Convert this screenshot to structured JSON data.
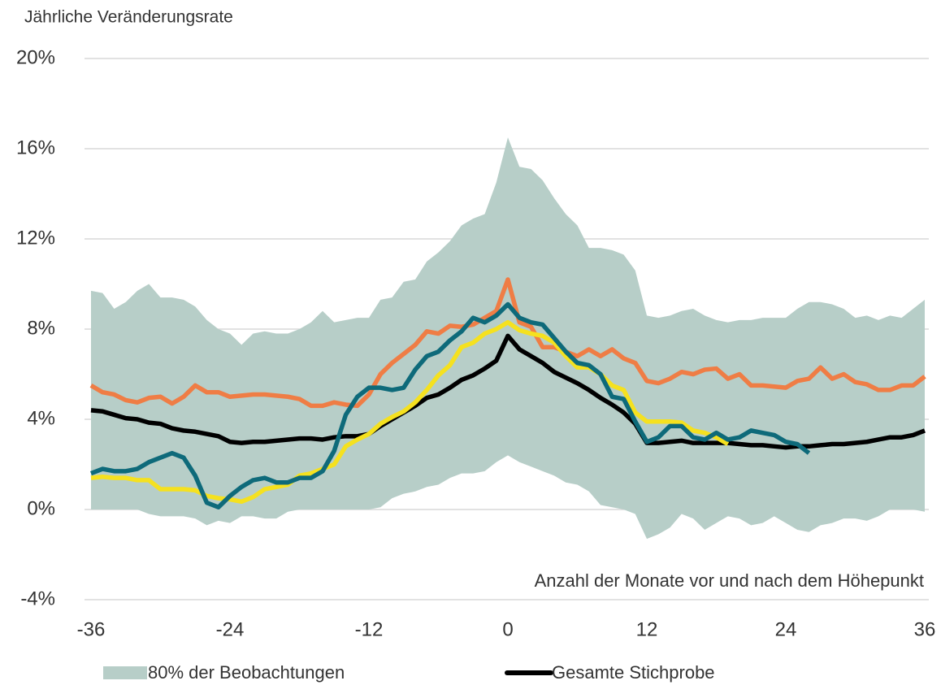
{
  "chart_data": {
    "type": "line",
    "y_axis_title": "Jährliche Veränderungsrate",
    "annotation": "Anzahl der Monate vor und nach dem Höhepunkt",
    "x": [
      -36,
      -35,
      -34,
      -33,
      -32,
      -31,
      -30,
      -29,
      -28,
      -27,
      -26,
      -25,
      -24,
      -23,
      -22,
      -21,
      -20,
      -19,
      -18,
      -17,
      -16,
      -15,
      -14,
      -13,
      -12,
      -11,
      -10,
      -9,
      -8,
      -7,
      -6,
      -5,
      -4,
      -3,
      -2,
      -1,
      0,
      1,
      2,
      3,
      4,
      5,
      6,
      7,
      8,
      9,
      10,
      11,
      12,
      13,
      14,
      15,
      16,
      17,
      18,
      19,
      20,
      21,
      22,
      23,
      24,
      25,
      26,
      27,
      28,
      29,
      30,
      31,
      32,
      33,
      34,
      35,
      36
    ],
    "xlim": [
      -36,
      36
    ],
    "xticks": [
      -36,
      -24,
      -12,
      0,
      12,
      24,
      36
    ],
    "ylim": [
      -4,
      20
    ],
    "yticks": [
      {
        "value": -4,
        "label": "-4%"
      },
      {
        "value": 0,
        "label": "0%"
      },
      {
        "value": 4,
        "label": "4%"
      },
      {
        "value": 8,
        "label": "8%"
      },
      {
        "value": 12,
        "label": "12%"
      },
      {
        "value": 16,
        "label": "16%"
      },
      {
        "value": 20,
        "label": "20%"
      }
    ],
    "grid": true,
    "legend": "bottom",
    "series": [
      {
        "name": "80% der Beobachtungen",
        "color": "#b7cec8",
        "kind": "band",
        "values": [
          9.7,
          9.6,
          8.9,
          9.2,
          9.7,
          10.0,
          9.4,
          9.4,
          9.3,
          9.0,
          8.4,
          8.0,
          7.8,
          7.3,
          7.8,
          7.9,
          7.8,
          7.8,
          8.0,
          8.3,
          8.8,
          8.3,
          8.4,
          8.5,
          8.5,
          9.3,
          9.4,
          10.1,
          10.2,
          11.0,
          11.4,
          11.9,
          12.6,
          12.9,
          13.1,
          14.5,
          16.5,
          15.2,
          15.1,
          14.6,
          13.8,
          13.1,
          12.6,
          11.6,
          11.6,
          11.5,
          11.3,
          10.6,
          8.6,
          8.5,
          8.6,
          8.8,
          8.9,
          8.6,
          8.4,
          8.3,
          8.4,
          8.4,
          8.5,
          8.5,
          8.5,
          8.9,
          9.2,
          9.2,
          9.1,
          8.9,
          8.5,
          8.6,
          8.4,
          8.6,
          8.5,
          8.9,
          9.3
        ],
        "lower": [
          0.0,
          0.0,
          0.0,
          0.0,
          0.0,
          -0.2,
          -0.3,
          -0.3,
          -0.3,
          -0.4,
          -0.7,
          -0.5,
          -0.6,
          -0.3,
          -0.3,
          -0.4,
          -0.4,
          -0.1,
          0.0,
          0.0,
          0.0,
          0.0,
          0.0,
          0.0,
          0.0,
          0.1,
          0.5,
          0.7,
          0.8,
          1.0,
          1.1,
          1.4,
          1.6,
          1.6,
          1.7,
          2.1,
          2.4,
          2.1,
          1.9,
          1.7,
          1.5,
          1.2,
          1.1,
          0.8,
          0.2,
          0.1,
          0.0,
          -0.2,
          -1.3,
          -1.1,
          -0.8,
          -0.2,
          -0.4,
          -0.9,
          -0.6,
          -0.3,
          -0.4,
          -0.7,
          -0.6,
          -0.3,
          -0.6,
          -0.9,
          -1.0,
          -0.7,
          -0.6,
          -0.4,
          -0.4,
          -0.5,
          -0.3,
          0.0,
          0.0,
          0.0,
          -0.1
        ]
      },
      {
        "name": "Gesamte Stichprobe",
        "color": "#000000",
        "values": [
          4.4,
          4.35,
          4.2,
          4.05,
          4.0,
          3.85,
          3.8,
          3.6,
          3.5,
          3.45,
          3.35,
          3.25,
          3.0,
          2.95,
          3.0,
          3.0,
          3.05,
          3.1,
          3.15,
          3.15,
          3.1,
          3.2,
          3.25,
          3.25,
          3.35,
          3.7,
          4.0,
          4.3,
          4.6,
          4.95,
          5.1,
          5.4,
          5.75,
          5.95,
          6.25,
          6.6,
          7.7,
          7.1,
          6.8,
          6.5,
          6.1,
          5.85,
          5.6,
          5.3,
          4.95,
          4.65,
          4.3,
          3.8,
          2.95,
          2.95,
          3.0,
          3.05,
          2.95,
          2.95,
          2.95,
          2.95,
          2.9,
          2.85,
          2.85,
          2.8,
          2.75,
          2.8,
          2.8,
          2.85,
          2.9,
          2.9,
          2.95,
          3.0,
          3.1,
          3.2,
          3.2,
          3.3,
          3.5
        ]
      },
      {
        "color": "#ef7d45",
        "values": [
          5.5,
          5.2,
          5.1,
          4.85,
          4.75,
          4.95,
          5.0,
          4.7,
          5.0,
          5.5,
          5.2,
          5.2,
          5.0,
          5.05,
          5.1,
          5.1,
          5.05,
          5.0,
          4.9,
          4.6,
          4.6,
          4.75,
          4.65,
          4.6,
          5.1,
          6.0,
          6.5,
          6.9,
          7.3,
          7.9,
          7.8,
          8.15,
          8.1,
          8.2,
          8.5,
          8.8,
          10.2,
          8.3,
          8.1,
          7.2,
          7.2,
          7.0,
          6.8,
          7.1,
          6.8,
          7.1,
          6.7,
          6.5,
          5.7,
          5.6,
          5.8,
          6.1,
          6.0,
          6.2,
          6.25,
          5.8,
          6.0,
          5.5,
          5.5,
          5.45,
          5.4,
          5.7,
          5.8,
          6.3,
          5.8,
          6.0,
          5.65,
          5.55,
          5.3,
          5.3,
          5.5,
          5.5,
          5.9
        ]
      },
      {
        "color": "#f5e11f",
        "values": [
          1.4,
          1.45,
          1.4,
          1.4,
          1.3,
          1.3,
          0.9,
          0.9,
          0.9,
          0.85,
          0.6,
          0.5,
          0.45,
          0.35,
          0.55,
          0.9,
          1.0,
          1.1,
          1.5,
          1.6,
          1.8,
          2.0,
          2.8,
          3.1,
          3.35,
          3.8,
          4.1,
          4.35,
          4.75,
          5.3,
          5.95,
          6.4,
          7.2,
          7.4,
          7.8,
          8.0,
          8.3,
          7.95,
          7.8,
          7.7,
          7.4,
          6.8,
          6.3,
          6.3,
          6.0,
          5.5,
          5.3,
          4.3,
          3.9,
          3.9,
          3.9,
          3.85,
          3.5,
          3.4,
          3.2,
          2.9,
          null,
          null,
          null,
          null,
          null,
          null,
          null,
          null,
          null,
          null,
          null,
          null,
          null,
          null,
          null,
          null,
          null
        ]
      },
      {
        "color": "#0e6a7a",
        "values": [
          1.6,
          1.8,
          1.7,
          1.7,
          1.8,
          2.1,
          2.3,
          2.5,
          2.3,
          1.5,
          0.3,
          0.1,
          0.6,
          1.0,
          1.3,
          1.4,
          1.2,
          1.2,
          1.4,
          1.4,
          1.7,
          2.6,
          4.2,
          5.0,
          5.4,
          5.4,
          5.3,
          5.4,
          6.2,
          6.8,
          7.0,
          7.5,
          7.9,
          8.5,
          8.3,
          8.6,
          9.1,
          8.5,
          8.3,
          8.2,
          7.6,
          7.0,
          6.5,
          6.4,
          6.0,
          5.0,
          4.9,
          3.9,
          3.0,
          3.2,
          3.7,
          3.7,
          3.2,
          3.1,
          3.4,
          3.1,
          3.2,
          3.5,
          3.4,
          3.3,
          3.0,
          2.9,
          2.5,
          null,
          null,
          null,
          null,
          null,
          null,
          null,
          null,
          null,
          null
        ]
      }
    ]
  }
}
